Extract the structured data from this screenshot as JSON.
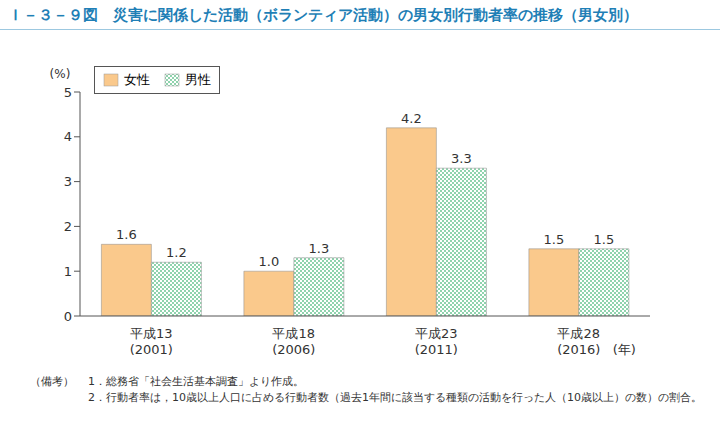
{
  "chart_data": {
    "type": "bar",
    "title": "Ｉ－３－９図　災害に関係した活動（ボランティア活動）の男女別行動者率の推移（男女別）",
    "y_label": "(%)",
    "x_label": "(年)",
    "categories": [
      "平成13\n(2001)",
      "平成18\n(2006)",
      "平成23\n(2011)",
      "平成28\n(2016)"
    ],
    "series": [
      {
        "name": "女性",
        "color": "#fac98c",
        "values": [
          1.6,
          1.0,
          4.2,
          1.5
        ],
        "value_labels": [
          "1.6",
          "1.0",
          "4.2",
          "1.5"
        ]
      },
      {
        "name": "男性",
        "color": "#8fd3ad",
        "values": [
          1.2,
          1.3,
          3.3,
          1.5
        ],
        "value_labels": [
          "1.2",
          "1.3",
          "3.3",
          "1.5"
        ]
      }
    ],
    "ylim": [
      0,
      5
    ],
    "yticks": [
      0,
      1,
      2,
      3,
      4,
      5
    ],
    "grid": false,
    "legend": "upper left",
    "data_labels": true,
    "notes": [
      "（備考）",
      "1．総務省「社会生活基本調査」より作成。",
      "2．行動者率は，10歳以上人口に占める行動者数（過去1年間に該当する種類の活動を行った人（10歳以上）の数）の割合。"
    ]
  }
}
